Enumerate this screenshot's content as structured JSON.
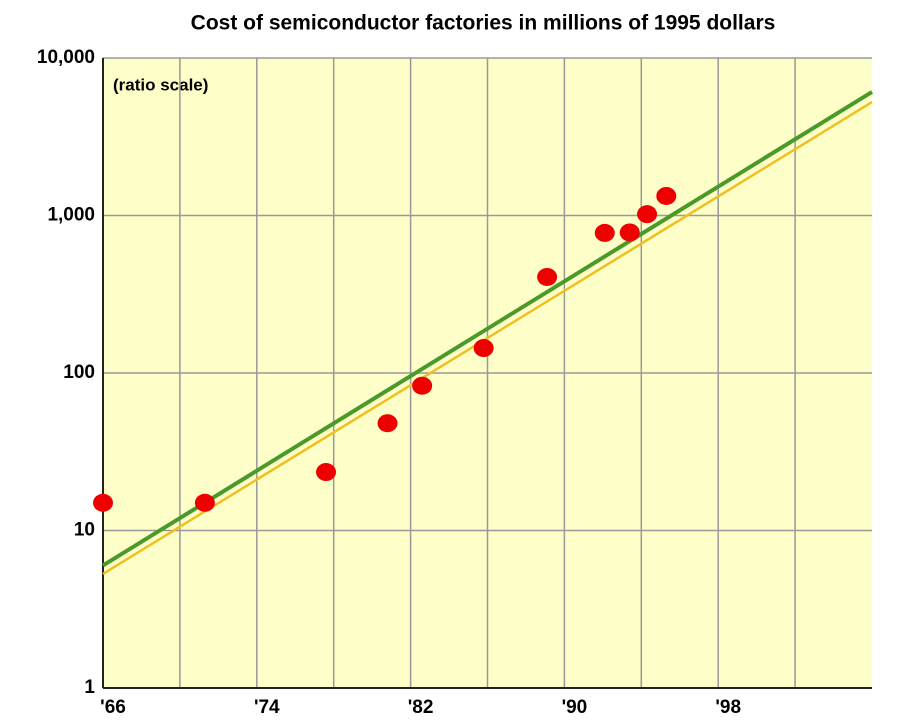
{
  "chart_data": {
    "type": "scatter",
    "title": "Cost of semiconductor factories in millions of 1995 dollars",
    "annotation": "(ratio scale)",
    "x": [
      1966,
      1971.3,
      1977.6,
      1980.8,
      1982.6,
      1985.8,
      1989.1,
      1992.1,
      1993.4,
      1994.3,
      1995.3
    ],
    "values": [
      15,
      15,
      23.5,
      48,
      83,
      144,
      407,
      775,
      780,
      1020,
      1330
    ],
    "color": "#ee0000",
    "lines": [
      {
        "color": "#4a9a2a",
        "x": [
          1966,
          2006
        ],
        "values": [
          6,
          6090
        ]
      },
      {
        "color": "#f0c020",
        "x": [
          1966,
          2006
        ],
        "values": [
          5.3,
          5250
        ]
      }
    ],
    "xlim": [
      1966,
      2006
    ],
    "ylim": [
      1,
      10000
    ],
    "log_y": true,
    "grid": true,
    "background": "#fefec8",
    "xticks": [
      {
        "value": 1966,
        "label": "'66"
      },
      {
        "value": 1974,
        "label": "'74"
      },
      {
        "value": 1982,
        "label": "'82"
      },
      {
        "value": 1990,
        "label": "'90"
      },
      {
        "value": 1998,
        "label": "'98"
      }
    ],
    "xticks_minor": [
      1970,
      1978,
      1986,
      1994,
      2002
    ],
    "yticks": [
      1,
      10,
      100,
      {
        "value": 1000,
        "label": "1,000"
      },
      {
        "value": 10000,
        "label": "10,000"
      }
    ]
  }
}
